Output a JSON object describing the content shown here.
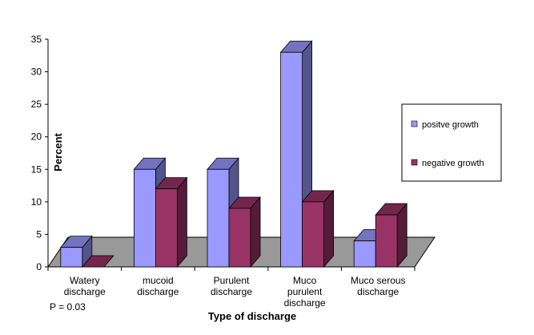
{
  "chart_data": {
    "type": "bar",
    "title": "",
    "xlabel": "Type of discharge",
    "ylabel": "Percent",
    "ylim": [
      0,
      35
    ],
    "yticks": [
      "0",
      "5",
      "10",
      "15",
      "20",
      "25",
      "30",
      "35"
    ],
    "categories": [
      [
        "Watery",
        "discharge"
      ],
      [
        "mucoid",
        "discharge"
      ],
      [
        "Purulent",
        "discharge"
      ],
      [
        "Muco",
        "purulent",
        "discharge"
      ],
      [
        "Muco serous",
        "discharge"
      ]
    ],
    "series": [
      {
        "name": "positve growth",
        "values": [
          3,
          15,
          15,
          33,
          4
        ],
        "color": "#9999FF"
      },
      {
        "name": "negative growth",
        "values": [
          0,
          12,
          9,
          10,
          8
        ],
        "color": "#993366"
      }
    ],
    "floor_color": "#999999",
    "legend_position": "right",
    "annotation": "P = 0.03",
    "grid": false
  }
}
